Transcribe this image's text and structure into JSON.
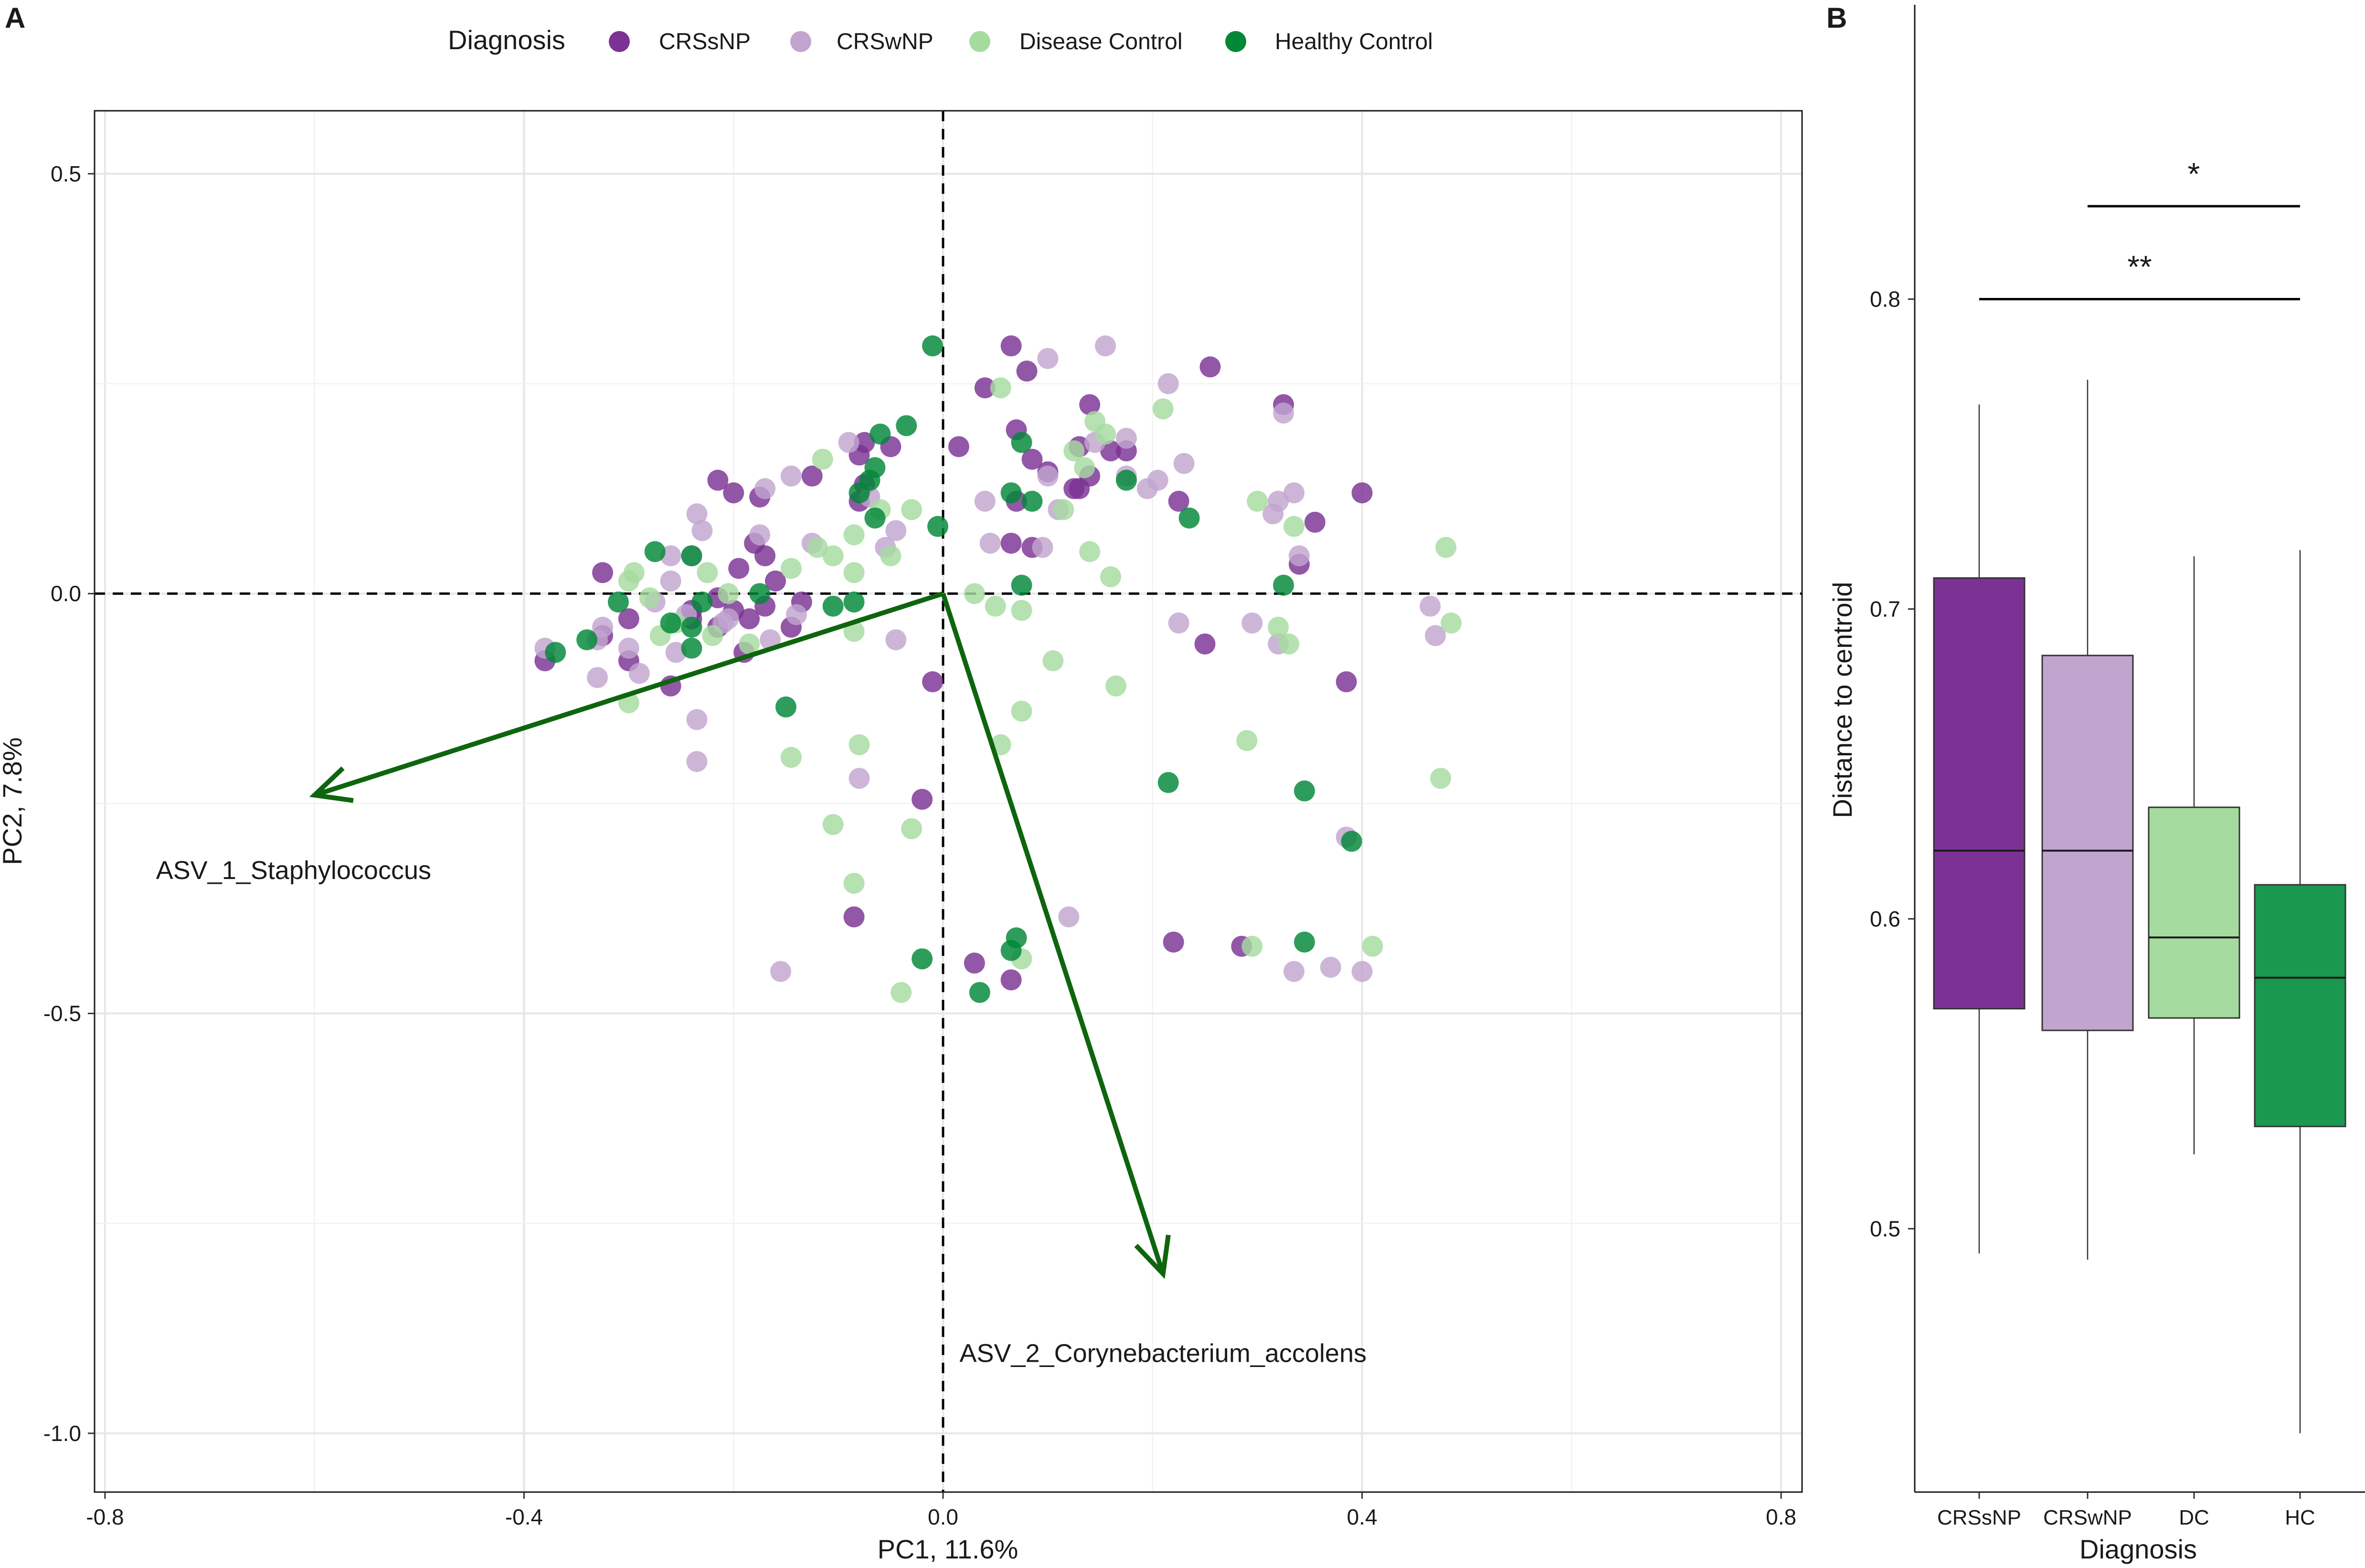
{
  "legend": {
    "title": "Diagnosis",
    "entries": [
      {
        "label": "CRSsNP",
        "color": "#7B3294"
      },
      {
        "label": "CRSwNP",
        "color": "#C2A5CF"
      },
      {
        "label": "Disease Control",
        "color": "#A6DBA0"
      },
      {
        "label": "Healthy Control",
        "color": "#008837"
      }
    ]
  },
  "chart_data": [
    {
      "panel": "A",
      "type": "scatter",
      "xlabel": "PC1, 11.6%",
      "ylabel": "PC2, 7.8%",
      "xlim": [
        -0.81,
        0.82
      ],
      "ylim": [
        -1.07,
        0.575
      ],
      "xticks": [
        -0.8,
        -0.4,
        0.0,
        0.4,
        0.8
      ],
      "xtick_labels": [
        "-0.8",
        "-0.4",
        "0.0",
        "0.4",
        "0.8"
      ],
      "yticks": [
        0.5,
        0.0,
        -0.5,
        -1.0
      ],
      "ytick_labels": [
        "0.5",
        "0.0",
        "-0.5",
        "-1.0"
      ],
      "grid": true,
      "reference_lines": {
        "x": 0,
        "y": 0
      },
      "arrow_color": "#0E650E",
      "arrows": [
        {
          "label": "ASV_1_Staphylococcus",
          "x": -0.6,
          "y": -0.24,
          "label_x": -0.62,
          "label_y": -0.34
        },
        {
          "label": "ASV_2_Corynebacterium_accolens",
          "x": 0.21,
          "y": -0.81,
          "label_x": 0.21,
          "label_y": -0.915
        }
      ],
      "series": [
        {
          "name": "CRSsNP",
          "color": "#7B3294",
          "points": [
            [
              0.065,
              0.295
            ],
            [
              0.04,
              0.245
            ],
            [
              0.08,
              0.265
            ],
            [
              0.07,
              0.195
            ],
            [
              0.14,
              0.225
            ],
            [
              0.16,
              0.17
            ],
            [
              0.175,
              0.17
            ],
            [
              0.13,
              0.175
            ],
            [
              0.255,
              0.27
            ],
            [
              0.325,
              0.225
            ],
            [
              0.015,
              0.175
            ],
            [
              0.085,
              0.16
            ],
            [
              0.1,
              0.145
            ],
            [
              0.07,
              0.11
            ],
            [
              0.13,
              0.125
            ],
            [
              0.125,
              0.125
            ],
            [
              0.14,
              0.14
            ],
            [
              0.225,
              0.11
            ],
            [
              0.4,
              0.12
            ],
            [
              0.355,
              0.085
            ],
            [
              0.085,
              0.055
            ],
            [
              0.065,
              0.06
            ],
            [
              0.34,
              0.035
            ],
            [
              0.25,
              -0.06
            ],
            [
              0.385,
              -0.105
            ],
            [
              -0.01,
              -0.105
            ],
            [
              -0.02,
              -0.245
            ],
            [
              -0.085,
              -0.385
            ],
            [
              0.03,
              -0.44
            ],
            [
              0.065,
              -0.46
            ],
            [
              0.22,
              -0.415
            ],
            [
              0.285,
              -0.42
            ],
            [
              -0.075,
              0.13
            ],
            [
              -0.08,
              0.165
            ],
            [
              -0.05,
              0.175
            ],
            [
              -0.075,
              0.18
            ],
            [
              -0.08,
              0.11
            ],
            [
              -0.125,
              0.14
            ],
            [
              -0.215,
              0.135
            ],
            [
              -0.2,
              0.12
            ],
            [
              -0.175,
              0.115
            ],
            [
              -0.18,
              0.06
            ],
            [
              -0.17,
              0.045
            ],
            [
              -0.195,
              0.03
            ],
            [
              -0.16,
              0.015
            ],
            [
              -0.135,
              -0.01
            ],
            [
              -0.17,
              -0.015
            ],
            [
              -0.215,
              -0.005
            ],
            [
              -0.2,
              -0.02
            ],
            [
              -0.215,
              -0.04
            ],
            [
              -0.185,
              -0.03
            ],
            [
              -0.24,
              -0.02
            ],
            [
              -0.24,
              -0.03
            ],
            [
              -0.145,
              -0.04
            ],
            [
              -0.3,
              -0.03
            ],
            [
              -0.325,
              0.025
            ],
            [
              -0.325,
              -0.05
            ],
            [
              -0.3,
              -0.08
            ],
            [
              -0.26,
              -0.11
            ],
            [
              -0.38,
              -0.08
            ],
            [
              -0.19,
              -0.07
            ]
          ]
        },
        {
          "name": "CRSwNP",
          "color": "#C2A5CF",
          "points": [
            [
              0.1,
              0.28
            ],
            [
              0.155,
              0.295
            ],
            [
              0.175,
              0.185
            ],
            [
              0.145,
              0.18
            ],
            [
              0.215,
              0.25
            ],
            [
              0.175,
              0.14
            ],
            [
              0.23,
              0.155
            ],
            [
              0.205,
              0.135
            ],
            [
              0.195,
              0.125
            ],
            [
              0.325,
              0.215
            ],
            [
              0.32,
              0.11
            ],
            [
              0.335,
              0.12
            ],
            [
              0.315,
              0.095
            ],
            [
              0.04,
              0.11
            ],
            [
              0.1,
              0.14
            ],
            [
              0.11,
              0.1
            ],
            [
              0.095,
              0.055
            ],
            [
              0.045,
              0.06
            ],
            [
              0.34,
              0.045
            ],
            [
              0.225,
              -0.035
            ],
            [
              0.295,
              -0.035
            ],
            [
              0.32,
              -0.06
            ],
            [
              0.465,
              -0.015
            ],
            [
              0.47,
              -0.05
            ],
            [
              0.385,
              -0.29
            ],
            [
              0.12,
              -0.385
            ],
            [
              -0.08,
              -0.22
            ],
            [
              -0.045,
              -0.055
            ],
            [
              -0.155,
              -0.45
            ],
            [
              0.335,
              -0.45
            ],
            [
              0.37,
              -0.445
            ],
            [
              0.4,
              -0.45
            ],
            [
              -0.09,
              0.18
            ],
            [
              -0.145,
              0.14
            ],
            [
              -0.17,
              0.125
            ],
            [
              -0.07,
              0.115
            ],
            [
              -0.045,
              0.075
            ],
            [
              -0.055,
              0.055
            ],
            [
              -0.125,
              0.06
            ],
            [
              -0.235,
              0.095
            ],
            [
              -0.23,
              0.075
            ],
            [
              -0.175,
              0.07
            ],
            [
              -0.24,
              0.045
            ],
            [
              -0.26,
              0.045
            ],
            [
              -0.26,
              0.015
            ],
            [
              -0.275,
              -0.01
            ],
            [
              -0.245,
              -0.025
            ],
            [
              -0.205,
              -0.03
            ],
            [
              -0.165,
              -0.055
            ],
            [
              -0.14,
              -0.025
            ],
            [
              -0.325,
              -0.04
            ],
            [
              -0.33,
              -0.055
            ],
            [
              -0.38,
              -0.065
            ],
            [
              -0.3,
              -0.065
            ],
            [
              -0.255,
              -0.07
            ],
            [
              -0.29,
              -0.095
            ],
            [
              -0.33,
              -0.1
            ],
            [
              -0.235,
              -0.15
            ],
            [
              -0.235,
              -0.2
            ],
            [
              -0.21,
              -0.035
            ]
          ]
        },
        {
          "name": "Disease Control",
          "color": "#A6DBA0",
          "points": [
            [
              0.055,
              0.245
            ],
            [
              0.145,
              0.205
            ],
            [
              0.155,
              0.19
            ],
            [
              0.125,
              0.17
            ],
            [
              0.135,
              0.15
            ],
            [
              0.21,
              0.22
            ],
            [
              0.3,
              0.11
            ],
            [
              0.335,
              0.08
            ],
            [
              0.03,
              0.0
            ],
            [
              0.115,
              0.1
            ],
            [
              0.16,
              0.02
            ],
            [
              0.075,
              -0.02
            ],
            [
              0.05,
              -0.015
            ],
            [
              0.14,
              0.05
            ],
            [
              0.105,
              -0.08
            ],
            [
              0.165,
              -0.11
            ],
            [
              0.075,
              -0.14
            ],
            [
              0.055,
              -0.18
            ],
            [
              0.33,
              -0.06
            ],
            [
              0.32,
              -0.04
            ],
            [
              0.48,
              0.055
            ],
            [
              0.485,
              -0.035
            ],
            [
              0.475,
              -0.22
            ],
            [
              0.29,
              -0.175
            ],
            [
              0.41,
              -0.42
            ],
            [
              0.295,
              -0.42
            ],
            [
              0.075,
              -0.435
            ],
            [
              -0.04,
              -0.475
            ],
            [
              -0.085,
              -0.345
            ],
            [
              -0.08,
              -0.18
            ],
            [
              -0.145,
              -0.195
            ],
            [
              -0.105,
              -0.275
            ],
            [
              -0.03,
              -0.28
            ],
            [
              -0.115,
              0.16
            ],
            [
              -0.06,
              0.1
            ],
            [
              -0.085,
              0.07
            ],
            [
              -0.05,
              0.045
            ],
            [
              -0.105,
              0.045
            ],
            [
              -0.085,
              0.025
            ],
            [
              -0.12,
              0.055
            ],
            [
              -0.145,
              0.03
            ],
            [
              -0.205,
              0.0
            ],
            [
              -0.225,
              0.025
            ],
            [
              -0.28,
              -0.005
            ],
            [
              -0.3,
              0.015
            ],
            [
              -0.295,
              0.025
            ],
            [
              -0.255,
              -0.035
            ],
            [
              -0.27,
              -0.05
            ],
            [
              -0.22,
              -0.05
            ],
            [
              -0.185,
              -0.06
            ],
            [
              -0.3,
              -0.13
            ],
            [
              -0.085,
              -0.045
            ],
            [
              -0.03,
              0.1
            ]
          ]
        },
        {
          "name": "Healthy Control",
          "color": "#008837",
          "points": [
            [
              -0.01,
              0.295
            ],
            [
              0.075,
              0.18
            ],
            [
              0.065,
              0.12
            ],
            [
              0.085,
              0.11
            ],
            [
              0.175,
              0.135
            ],
            [
              0.235,
              0.09
            ],
            [
              0.075,
              0.01
            ],
            [
              0.325,
              0.01
            ],
            [
              -0.005,
              0.08
            ],
            [
              -0.035,
              0.2
            ],
            [
              -0.06,
              0.19
            ],
            [
              -0.07,
              0.135
            ],
            [
              -0.065,
              0.15
            ],
            [
              -0.065,
              0.09
            ],
            [
              -0.08,
              0.12
            ],
            [
              -0.085,
              -0.01
            ],
            [
              -0.105,
              -0.015
            ],
            [
              -0.15,
              -0.135
            ],
            [
              -0.175,
              0.0
            ],
            [
              -0.23,
              -0.01
            ],
            [
              -0.26,
              -0.035
            ],
            [
              -0.24,
              -0.04
            ],
            [
              -0.24,
              -0.065
            ],
            [
              -0.275,
              0.05
            ],
            [
              -0.24,
              0.045
            ],
            [
              -0.31,
              -0.01
            ],
            [
              -0.34,
              -0.055
            ],
            [
              -0.37,
              -0.07
            ],
            [
              0.215,
              -0.225
            ],
            [
              0.345,
              -0.235
            ],
            [
              0.39,
              -0.295
            ],
            [
              -0.02,
              -0.435
            ],
            [
              0.035,
              -0.475
            ],
            [
              0.065,
              -0.425
            ],
            [
              0.07,
              -0.41
            ],
            [
              0.345,
              -0.415
            ]
          ]
        }
      ]
    },
    {
      "panel": "B",
      "type": "box",
      "xlabel": "Diagnosis",
      "ylabel": "Distance to centroid",
      "ylim": [
        0.415,
        0.895
      ],
      "yticks": [
        0.5,
        0.6,
        0.7,
        0.8
      ],
      "ytick_labels": [
        "0.5",
        "0.6",
        "0.7",
        "0.8"
      ],
      "categories": [
        "CRSsNP",
        "CRSwNP",
        "DC",
        "HC"
      ],
      "boxes": [
        {
          "name": "CRSsNP",
          "color": "#7B3294",
          "min": 0.492,
          "q1": 0.571,
          "median": 0.622,
          "q3": 0.71,
          "max": 0.766
        },
        {
          "name": "CRSwNP",
          "color": "#C2A5CF",
          "min": 0.49,
          "q1": 0.564,
          "median": 0.622,
          "q3": 0.685,
          "max": 0.774
        },
        {
          "name": "DC",
          "color": "#A6DBA0",
          "min": 0.524,
          "q1": 0.568,
          "median": 0.594,
          "q3": 0.636,
          "max": 0.717
        },
        {
          "name": "HC",
          "color": "#1A9850",
          "min": 0.434,
          "q1": 0.533,
          "median": 0.581,
          "q3": 0.611,
          "max": 0.719
        }
      ],
      "significance": [
        {
          "from": "CRSwNP",
          "to": "HC",
          "y": 0.83,
          "label": "*"
        },
        {
          "from": "CRSsNP",
          "to": "HC",
          "y": 0.8,
          "label": "**"
        }
      ]
    }
  ]
}
